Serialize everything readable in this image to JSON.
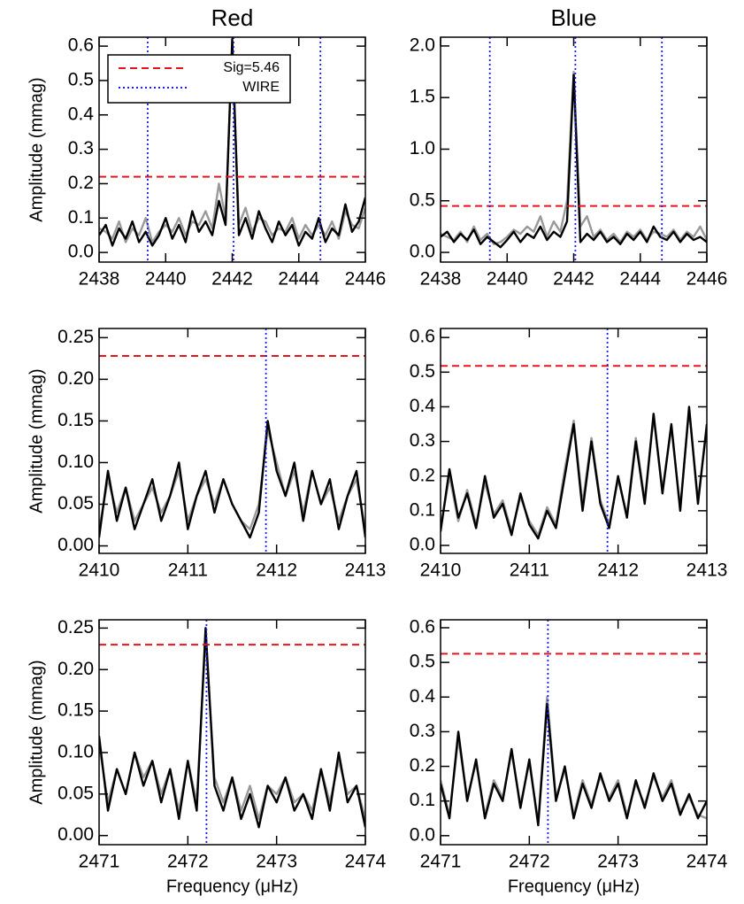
{
  "chart_data": [
    {
      "type": "line",
      "title": "Red",
      "ylabel": "Amplitude (mmag)",
      "x": [
        2438,
        2438.2,
        2438.4,
        2438.6,
        2438.8,
        2439,
        2439.2,
        2439.4,
        2439.6,
        2439.8,
        2440,
        2440.2,
        2440.4,
        2440.6,
        2440.8,
        2441,
        2441.2,
        2441.4,
        2441.6,
        2441.8,
        2442,
        2442.2,
        2442.4,
        2442.6,
        2442.8,
        2443,
        2443.2,
        2443.4,
        2443.6,
        2443.8,
        2444,
        2444.2,
        2444.4,
        2444.6,
        2444.8,
        2445,
        2445.2,
        2445.4,
        2445.6,
        2445.8,
        2446
      ],
      "series": [
        {
          "color": "#999999",
          "values": [
            0.07,
            0.06,
            0.04,
            0.09,
            0.03,
            0.07,
            0.05,
            0.1,
            0.03,
            0.06,
            0.08,
            0.06,
            0.1,
            0.05,
            0.09,
            0.08,
            0.12,
            0.07,
            0.2,
            0.1,
            0.6,
            0.08,
            0.13,
            0.06,
            0.1,
            0.09,
            0.05,
            0.07,
            0.06,
            0.1,
            0.04,
            0.08,
            0.05,
            0.08,
            0.05,
            0.09,
            0.04,
            0.12,
            0.08,
            0.07,
            0.13
          ]
        },
        {
          "color": "#000000",
          "values": [
            0.05,
            0.08,
            0.02,
            0.07,
            0.04,
            0.09,
            0.03,
            0.06,
            0.02,
            0.05,
            0.1,
            0.04,
            0.08,
            0.03,
            0.12,
            0.06,
            0.09,
            0.05,
            0.15,
            0.08,
            0.62,
            0.05,
            0.1,
            0.04,
            0.12,
            0.07,
            0.03,
            0.09,
            0.05,
            0.08,
            0.02,
            0.06,
            0.04,
            0.1,
            0.03,
            0.07,
            0.05,
            0.14,
            0.06,
            0.09,
            0.16
          ]
        }
      ],
      "threshold": {
        "name": "Sig=5.46",
        "value": 0.22,
        "color": "#e8141c"
      },
      "markers": {
        "name": "WIRE",
        "values": [
          2439.46,
          2442.04,
          2444.65
        ],
        "color": "#1a1aff"
      },
      "xlim": [
        2438,
        2446
      ],
      "ylim": [
        -0.028,
        0.626
      ],
      "xticks": [
        2438,
        2440,
        2442,
        2444,
        2446
      ],
      "yticks": [
        {
          "value": 0,
          "label": "0.0"
        },
        0.1,
        0.2,
        0.3,
        0.4,
        0.5,
        0.6
      ]
    },
    {
      "type": "line",
      "title": "Blue",
      "x": [
        2438,
        2438.2,
        2438.4,
        2438.6,
        2438.8,
        2439,
        2439.2,
        2439.4,
        2439.6,
        2439.8,
        2440,
        2440.2,
        2440.4,
        2440.6,
        2440.8,
        2441,
        2441.2,
        2441.4,
        2441.6,
        2441.8,
        2442,
        2442.2,
        2442.4,
        2442.6,
        2442.8,
        2443,
        2443.2,
        2443.4,
        2443.6,
        2443.8,
        2444,
        2444.2,
        2444.4,
        2444.6,
        2444.8,
        2445,
        2445.2,
        2445.4,
        2445.6,
        2445.8,
        2446
      ],
      "series": [
        {
          "color": "#999999",
          "values": [
            0.18,
            0.15,
            0.12,
            0.2,
            0.1,
            0.25,
            0.12,
            0.18,
            0.08,
            0.1,
            0.15,
            0.22,
            0.18,
            0.25,
            0.2,
            0.35,
            0.15,
            0.3,
            0.2,
            0.5,
            1.75,
            0.25,
            0.35,
            0.15,
            0.22,
            0.12,
            0.18,
            0.1,
            0.2,
            0.15,
            0.22,
            0.12,
            0.2,
            0.18,
            0.15,
            0.22,
            0.12,
            0.2,
            0.15,
            0.25,
            0.12
          ]
        },
        {
          "color": "#000000",
          "values": [
            0.15,
            0.2,
            0.1,
            0.18,
            0.12,
            0.22,
            0.08,
            0.15,
            0.1,
            0.05,
            0.12,
            0.2,
            0.1,
            0.18,
            0.14,
            0.25,
            0.12,
            0.2,
            0.15,
            0.3,
            1.72,
            0.1,
            0.18,
            0.12,
            0.2,
            0.1,
            0.15,
            0.08,
            0.18,
            0.12,
            0.2,
            0.1,
            0.25,
            0.15,
            0.12,
            0.2,
            0.1,
            0.18,
            0.12,
            0.15,
            0.1
          ]
        }
      ],
      "threshold": {
        "value": 0.45,
        "color": "#e8141c"
      },
      "markers": {
        "values": [
          2439.48,
          2442.05,
          2444.65
        ],
        "color": "#1a1aff"
      },
      "xlim": [
        2438,
        2446
      ],
      "ylim": [
        -0.094,
        2.085
      ],
      "xticks": [
        2438,
        2440,
        2442,
        2444,
        2446
      ],
      "yticks": [
        {
          "value": 0,
          "label": "0.0"
        },
        0.5,
        {
          "value": 1,
          "label": "1.0"
        },
        1.5,
        {
          "value": 2,
          "label": "2.0"
        }
      ]
    },
    {
      "type": "line",
      "ylabel": "Amplitude (mmag)",
      "x": [
        2410,
        2410.1,
        2410.2,
        2410.3,
        2410.4,
        2410.5,
        2410.6,
        2410.7,
        2410.8,
        2410.9,
        2411,
        2411.1,
        2411.2,
        2411.3,
        2411.4,
        2411.5,
        2411.6,
        2411.7,
        2411.8,
        2411.9,
        2412,
        2412.1,
        2412.2,
        2412.3,
        2412.4,
        2412.5,
        2412.6,
        2412.7,
        2412.8,
        2412.9,
        2413
      ],
      "series": [
        {
          "color": "#999999",
          "values": [
            0.02,
            0.08,
            0.04,
            0.07,
            0.03,
            0.05,
            0.07,
            0.04,
            0.06,
            0.09,
            0.03,
            0.06,
            0.08,
            0.05,
            0.08,
            0.05,
            0.03,
            0.02,
            0.05,
            0.14,
            0.1,
            0.06,
            0.09,
            0.04,
            0.09,
            0.05,
            0.07,
            0.03,
            0.06,
            0.08,
            0.02
          ]
        },
        {
          "color": "#000000",
          "values": [
            0.01,
            0.09,
            0.03,
            0.07,
            0.02,
            0.05,
            0.08,
            0.03,
            0.06,
            0.1,
            0.02,
            0.06,
            0.09,
            0.04,
            0.08,
            0.05,
            0.03,
            0.01,
            0.04,
            0.15,
            0.09,
            0.06,
            0.1,
            0.03,
            0.09,
            0.05,
            0.08,
            0.02,
            0.06,
            0.09,
            0.01
          ]
        }
      ],
      "threshold": {
        "value": 0.228,
        "color": "#e8141c"
      },
      "markers": {
        "values": [
          2411.88
        ],
        "color": "#1a1aff"
      },
      "xlim": [
        2410,
        2413
      ],
      "ylim": [
        -0.009,
        0.261
      ],
      "xticks": [
        2410,
        2411,
        2412,
        2413
      ],
      "yticks": [
        {
          "value": 0,
          "label": "0.00"
        },
        0.05,
        {
          "value": 0.1,
          "label": "0.10"
        },
        0.15,
        {
          "value": 0.2,
          "label": "0.20"
        },
        0.25
      ]
    },
    {
      "type": "line",
      "x": [
        2410,
        2410.1,
        2410.2,
        2410.3,
        2410.4,
        2410.5,
        2410.6,
        2410.7,
        2410.8,
        2410.9,
        2411,
        2411.1,
        2411.2,
        2411.3,
        2411.4,
        2411.5,
        2411.6,
        2411.7,
        2411.8,
        2411.9,
        2412,
        2412.1,
        2412.2,
        2412.3,
        2412.4,
        2412.5,
        2412.6,
        2412.7,
        2412.8,
        2412.9,
        2413
      ],
      "series": [
        {
          "color": "#999999",
          "values": [
            0.05,
            0.2,
            0.07,
            0.16,
            0.06,
            0.18,
            0.09,
            0.13,
            0.04,
            0.14,
            0.07,
            0.03,
            0.11,
            0.06,
            0.22,
            0.36,
            0.12,
            0.31,
            0.13,
            0.06,
            0.19,
            0.09,
            0.31,
            0.13,
            0.37,
            0.16,
            0.34,
            0.11,
            0.39,
            0.13,
            0.34
          ]
        },
        {
          "color": "#000000",
          "values": [
            0.04,
            0.22,
            0.08,
            0.15,
            0.05,
            0.2,
            0.08,
            0.12,
            0.03,
            0.15,
            0.06,
            0.02,
            0.1,
            0.05,
            0.2,
            0.35,
            0.1,
            0.3,
            0.12,
            0.05,
            0.2,
            0.08,
            0.3,
            0.12,
            0.38,
            0.15,
            0.35,
            0.1,
            0.4,
            0.12,
            0.35
          ]
        }
      ],
      "threshold": {
        "value": 0.518,
        "color": "#e8141c"
      },
      "markers": {
        "values": [
          2411.88
        ],
        "color": "#1a1aff"
      },
      "xlim": [
        2410,
        2413
      ],
      "ylim": [
        -0.023,
        0.626
      ],
      "xticks": [
        2410,
        2411,
        2412,
        2413
      ],
      "yticks": [
        {
          "value": 0,
          "label": "0.0"
        },
        0.1,
        0.2,
        0.3,
        0.4,
        0.5,
        0.6
      ]
    },
    {
      "type": "line",
      "ylabel": "Amplitude (mmag)",
      "xlabel": "Frequency (μHz)",
      "x": [
        2471,
        2471.1,
        2471.2,
        2471.3,
        2471.4,
        2471.5,
        2471.6,
        2471.7,
        2471.8,
        2471.9,
        2472,
        2472.1,
        2472.2,
        2472.3,
        2472.4,
        2472.5,
        2472.6,
        2472.7,
        2472.8,
        2472.9,
        2473,
        2473.1,
        2473.2,
        2473.3,
        2473.4,
        2473.5,
        2473.6,
        2473.7,
        2473.8,
        2473.9,
        2474
      ],
      "series": [
        {
          "color": "#999999",
          "values": [
            0.11,
            0.04,
            0.08,
            0.05,
            0.1,
            0.07,
            0.09,
            0.05,
            0.08,
            0.03,
            0.09,
            0.04,
            0.24,
            0.07,
            0.04,
            0.07,
            0.03,
            0.06,
            0.02,
            0.06,
            0.05,
            0.07,
            0.04,
            0.05,
            0.03,
            0.08,
            0.04,
            0.09,
            0.05,
            0.06,
            0.02
          ]
        },
        {
          "color": "#000000",
          "values": [
            0.12,
            0.03,
            0.08,
            0.05,
            0.1,
            0.06,
            0.09,
            0.04,
            0.08,
            0.02,
            0.09,
            0.03,
            0.25,
            0.06,
            0.03,
            0.07,
            0.02,
            0.05,
            0.01,
            0.06,
            0.04,
            0.07,
            0.03,
            0.05,
            0.02,
            0.08,
            0.03,
            0.1,
            0.04,
            0.06,
            0.01
          ]
        }
      ],
      "threshold": {
        "value": 0.23,
        "color": "#e8141c"
      },
      "markers": {
        "values": [
          2472.21
        ],
        "color": "#1a1aff"
      },
      "xlim": [
        2471,
        2474
      ],
      "ylim": [
        -0.011,
        0.26
      ],
      "xticks": [
        2471,
        2472,
        2473,
        2474
      ],
      "yticks": [
        {
          "value": 0,
          "label": "0.00"
        },
        0.05,
        {
          "value": 0.1,
          "label": "0.10"
        },
        0.15,
        {
          "value": 0.2,
          "label": "0.20"
        },
        0.25
      ]
    },
    {
      "type": "line",
      "xlabel": "Frequency (μHz)",
      "x": [
        2471,
        2471.1,
        2471.2,
        2471.3,
        2471.4,
        2471.5,
        2471.6,
        2471.7,
        2471.8,
        2471.9,
        2472,
        2472.1,
        2472.2,
        2472.3,
        2472.4,
        2472.5,
        2472.6,
        2472.7,
        2472.8,
        2472.9,
        2473,
        2473.1,
        2473.2,
        2473.3,
        2473.4,
        2473.5,
        2473.6,
        2473.7,
        2473.8,
        2473.9,
        2474
      ],
      "series": [
        {
          "color": "#999999",
          "values": [
            0.16,
            0.06,
            0.28,
            0.11,
            0.21,
            0.06,
            0.16,
            0.11,
            0.24,
            0.09,
            0.21,
            0.04,
            0.4,
            0.11,
            0.19,
            0.06,
            0.16,
            0.09,
            0.17,
            0.11,
            0.16,
            0.06,
            0.15,
            0.09,
            0.17,
            0.11,
            0.16,
            0.07,
            0.11,
            0.06,
            0.05
          ]
        },
        {
          "color": "#000000",
          "values": [
            0.15,
            0.05,
            0.3,
            0.1,
            0.22,
            0.05,
            0.15,
            0.1,
            0.25,
            0.08,
            0.22,
            0.03,
            0.38,
            0.1,
            0.2,
            0.05,
            0.15,
            0.08,
            0.18,
            0.1,
            0.15,
            0.05,
            0.16,
            0.08,
            0.18,
            0.1,
            0.15,
            0.06,
            0.12,
            0.05,
            0.1
          ]
        }
      ],
      "threshold": {
        "value": 0.525,
        "color": "#e8141c"
      },
      "markers": {
        "values": [
          2472.21
        ],
        "color": "#1a1aff"
      },
      "xlim": [
        2471,
        2474
      ],
      "ylim": [
        -0.026,
        0.623
      ],
      "xticks": [
        2471,
        2472,
        2473,
        2474
      ],
      "yticks": [
        {
          "value": 0,
          "label": "0.0"
        },
        0.1,
        0.2,
        0.3,
        0.4,
        0.5,
        0.6
      ]
    }
  ]
}
